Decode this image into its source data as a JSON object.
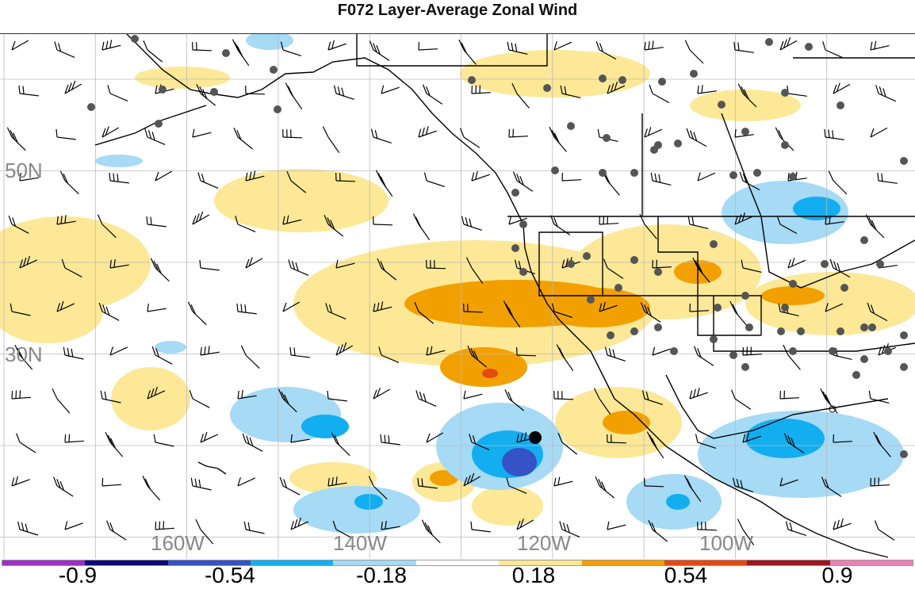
{
  "title": "F072 Layer-Average Zonal Wind",
  "lat_labels": [
    "50N",
    "30N"
  ],
  "lon_labels": [
    "160W",
    "140W",
    "120W",
    "100W"
  ],
  "colorbar": {
    "colors": [
      "#9b30c8",
      "#0a0a7a",
      "#3552c6",
      "#12aef0",
      "#a6daf5",
      "#ffffff",
      "#fce896",
      "#f2a000",
      "#e54813",
      "#a0141e",
      "#ec80b4"
    ],
    "tick_labels": [
      "-0.9",
      "-0.54",
      "-0.18",
      "0.18",
      "0.54",
      "0.9"
    ]
  },
  "map": {
    "positive_color_light": "#fce896",
    "positive_color_mid": "#f2a000",
    "positive_color_strong": "#e54813",
    "negative_color_light": "#a6daf5",
    "negative_color_mid": "#12aef0",
    "negative_color_strong": "#3552c6",
    "station_marker": "#555555",
    "storm_marker": "#000000"
  }
}
